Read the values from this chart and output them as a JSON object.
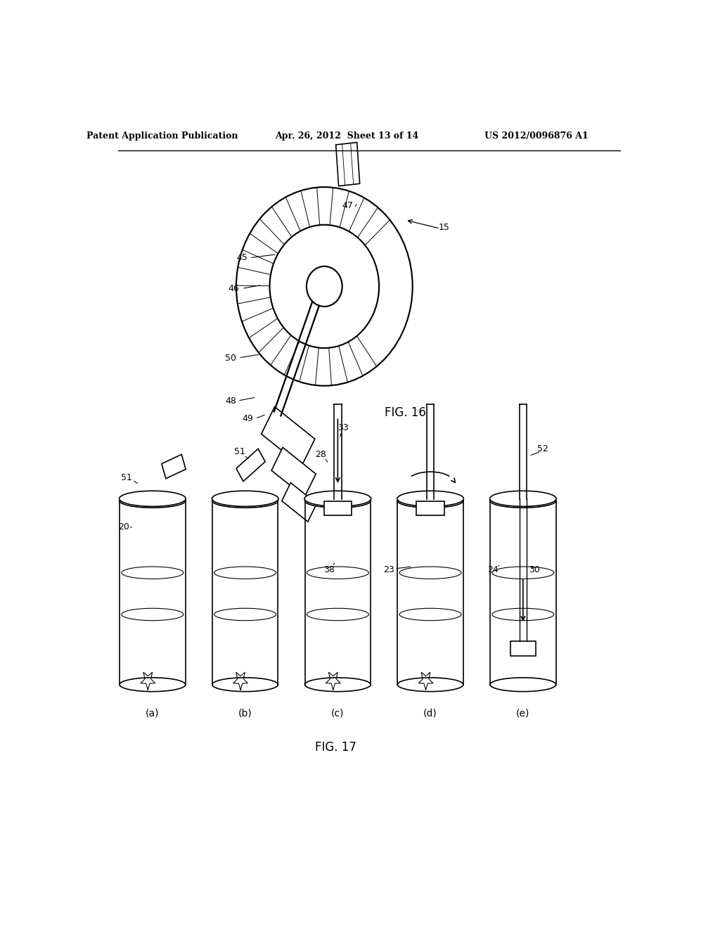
{
  "title_left": "Patent Application Publication",
  "title_mid": "Apr. 26, 2012  Sheet 13 of 14",
  "title_right": "US 2012/0096876 A1",
  "fig16_label": "FIG. 16",
  "fig17_label": "FIG. 17",
  "bg_color": "#ffffff",
  "line_color": "#000000",
  "fig17_subfigs": [
    "(a)",
    "(b)",
    "(c)",
    "(d)",
    "(e)"
  ]
}
